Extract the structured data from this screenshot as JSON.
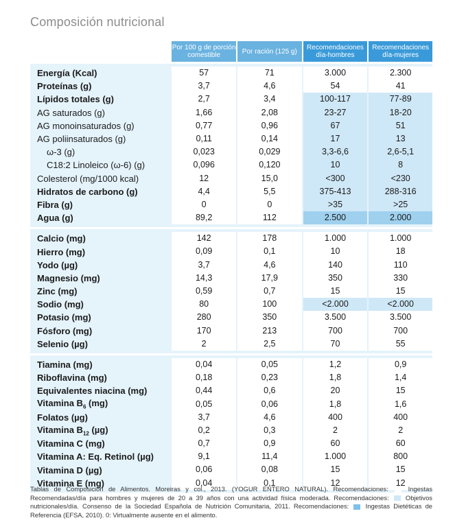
{
  "title": "Composición nutricional",
  "headers": [
    "Por 100 g de porción comestible",
    "Por ración (125 g)",
    "Recomendaciones día-hombres",
    "Recomendaciones día-mujeres"
  ],
  "sections": [
    {
      "rows": [
        {
          "label": "Energía (Kcal)",
          "bold": true,
          "values": [
            "57",
            "71",
            "3.000",
            "2.300"
          ],
          "rec": "none"
        },
        {
          "label": "Proteínas (g)",
          "bold": true,
          "values": [
            "3,7",
            "4,6",
            "54",
            "41"
          ],
          "rec": "none"
        },
        {
          "label": "Lípidos totales (g)",
          "bold": true,
          "values": [
            "2,7",
            "3,4",
            "100-117",
            "77-89"
          ],
          "rec": "obj"
        },
        {
          "label": "AG saturados (g)",
          "bold": false,
          "values": [
            "1,66",
            "2,08",
            "23-27",
            "18-20"
          ],
          "rec": "obj"
        },
        {
          "label": "AG monoinsaturados (g)",
          "bold": false,
          "values": [
            "0,77",
            "0,96",
            "67",
            "51"
          ],
          "rec": "obj"
        },
        {
          "label": "AG poliinsaturados (g)",
          "bold": false,
          "values": [
            "0,11",
            "0,14",
            "17",
            "13"
          ],
          "rec": "obj"
        },
        {
          "label": "ω-3 (g)",
          "bold": false,
          "indent": true,
          "values": [
            "0,023",
            "0,029",
            "3,3-6,6",
            "2,6-5,1"
          ],
          "rec": "obj"
        },
        {
          "label": "C18:2 Linoleico (ω-6) (g)",
          "bold": false,
          "indent": true,
          "values": [
            "0,096",
            "0,120",
            "10",
            "8"
          ],
          "rec": "obj"
        },
        {
          "label": "Colesterol (mg/1000 kcal)",
          "bold": false,
          "values": [
            "12",
            "15,0",
            "<300",
            "<230"
          ],
          "rec": "obj"
        },
        {
          "label": "Hidratos de carbono (g)",
          "bold": true,
          "values": [
            "4,4",
            "5,5",
            "375-413",
            "288-316"
          ],
          "rec": "obj"
        },
        {
          "label": "Fibra (g)",
          "bold": true,
          "values": [
            "0",
            "0",
            ">35",
            ">25"
          ],
          "rec": "obj"
        },
        {
          "label": "Agua (g)",
          "bold": true,
          "values": [
            "89,2",
            "112",
            "2.500",
            "2.000"
          ],
          "rec": "efsa"
        }
      ]
    },
    {
      "rows": [
        {
          "label": "Calcio (mg)",
          "bold": true,
          "values": [
            "142",
            "178",
            "1.000",
            "1.000"
          ],
          "rec": "none"
        },
        {
          "label": "Hierro (mg)",
          "bold": true,
          "values": [
            "0,09",
            "0,1",
            "10",
            "18"
          ],
          "rec": "none"
        },
        {
          "label": "Yodo (µg)",
          "bold": true,
          "values": [
            "3,7",
            "4,6",
            "140",
            "110"
          ],
          "rec": "none"
        },
        {
          "label": "Magnesio (mg)",
          "bold": true,
          "values": [
            "14,3",
            "17,9",
            "350",
            "330"
          ],
          "rec": "none"
        },
        {
          "label": "Zinc (mg)",
          "bold": true,
          "values": [
            "0,59",
            "0,7",
            "15",
            "15"
          ],
          "rec": "none"
        },
        {
          "label": "Sodio (mg)",
          "bold": true,
          "values": [
            "80",
            "100",
            "<2.000",
            "<2.000"
          ],
          "rec": "obj"
        },
        {
          "label": "Potasio (mg)",
          "bold": true,
          "values": [
            "280",
            "350",
            "3.500",
            "3.500"
          ],
          "rec": "none"
        },
        {
          "label": "Fósforo (mg)",
          "bold": true,
          "values": [
            "170",
            "213",
            "700",
            "700"
          ],
          "rec": "none"
        },
        {
          "label": "Selenio (µg)",
          "bold": true,
          "values": [
            "2",
            "2,5",
            "70",
            "55"
          ],
          "rec": "none"
        }
      ]
    },
    {
      "rows": [
        {
          "label": "Tiamina (mg)",
          "bold": true,
          "values": [
            "0,04",
            "0,05",
            "1,2",
            "0,9"
          ],
          "rec": "none"
        },
        {
          "label": "Riboflavina (mg)",
          "bold": true,
          "values": [
            "0,18",
            "0,23",
            "1,8",
            "1,4"
          ],
          "rec": "none"
        },
        {
          "label": "Equivalentes niacina (mg)",
          "bold": true,
          "values": [
            "0,44",
            "0,6",
            "20",
            "15"
          ],
          "rec": "none"
        },
        {
          "label": "Vitamina B",
          "sub": "6",
          "suffix": " (mg)",
          "bold": true,
          "values": [
            "0,05",
            "0,06",
            "1,8",
            "1,6"
          ],
          "rec": "none"
        },
        {
          "label": "Folatos (µg)",
          "bold": true,
          "values": [
            "3,7",
            "4,6",
            "400",
            "400"
          ],
          "rec": "none"
        },
        {
          "label": "Vitamina B",
          "sub": "12",
          "suffix": " (µg)",
          "bold": true,
          "values": [
            "0,2",
            "0,3",
            "2",
            "2"
          ],
          "rec": "none"
        },
        {
          "label": "Vitamina C (mg)",
          "bold": true,
          "values": [
            "0,7",
            "0,9",
            "60",
            "60"
          ],
          "rec": "none"
        },
        {
          "label": "Vitamina A: Eq. Retinol (µg)",
          "bold": true,
          "values": [
            "9,1",
            "11,4",
            "1.000",
            "800"
          ],
          "rec": "none"
        },
        {
          "label": "Vitamina D (µg)",
          "bold": true,
          "values": [
            "0,06",
            "0,08",
            "15",
            "15"
          ],
          "rec": "none"
        },
        {
          "label": "Vitamina E (mg)",
          "bold": true,
          "values": [
            "0,04",
            "0,1",
            "12",
            "12"
          ],
          "rec": "none"
        }
      ]
    }
  ],
  "notes": {
    "part1": "Tablas de Composición de Alimentos. Moreiras y col., 2013. (YOGUR ENTERO NATURAL). Recomendaciones:",
    "part2": "Ingestas Recomendadas/día para hombres y mujeres de 20 a 39 años con una actividad física moderada. Recomendaciones:",
    "part3": "Objetivos nutricionales/día. Consenso de la Sociedad Española de Nutrición Comunitaria, 2011. Recomendaciones:",
    "part4": "Ingestas Dietéticas de Referencia (EFSA, 2010). 0: Virtualmente ausente en el alimento."
  },
  "colors": {
    "header_light": "#6ab2e0",
    "header_dark": "#3a9ad9",
    "band": "#e5f3fb",
    "objectives": "#cfe8f7",
    "efsa": "#9fd0ee"
  }
}
